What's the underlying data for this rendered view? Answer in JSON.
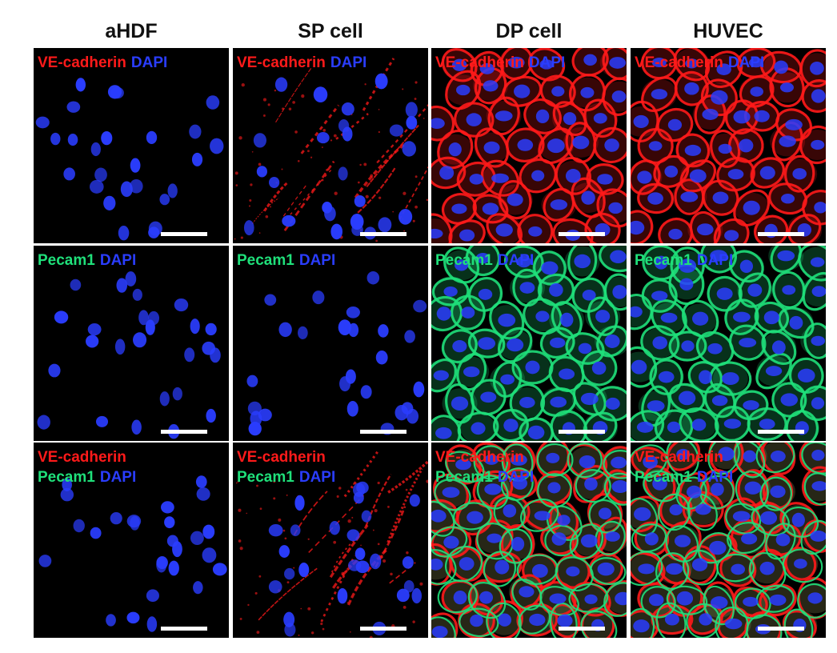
{
  "columns": [
    "aHDF",
    "SP cell",
    "DP cell",
    "HUVEC"
  ],
  "stains": {
    "ve_cadherin": {
      "label": "VE-cadherin",
      "color": "#ff1a1a"
    },
    "pecam1": {
      "label": "Pecam1",
      "color": "#1fe07a"
    },
    "dapi": {
      "label": "DAPI",
      "color": "#2a3dff"
    }
  },
  "rows": [
    {
      "lines": [
        [
          "ve_cadherin",
          "dapi"
        ]
      ]
    },
    {
      "lines": [
        [
          "pecam1",
          "dapi"
        ]
      ]
    },
    {
      "lines": [
        [
          "ve_cadherin"
        ],
        [
          "pecam1",
          "dapi"
        ]
      ]
    }
  ],
  "panels": [
    {
      "column": "aHDF",
      "row": 0,
      "membrane": [],
      "pattern": "sparse"
    },
    {
      "column": "SP cell",
      "row": 0,
      "membrane": [
        "ve_cadherin"
      ],
      "pattern": "streaks"
    },
    {
      "column": "DP cell",
      "row": 0,
      "membrane": [
        "ve_cadherin"
      ],
      "pattern": "network"
    },
    {
      "column": "HUVEC",
      "row": 0,
      "membrane": [
        "ve_cadherin"
      ],
      "pattern": "network"
    },
    {
      "column": "aHDF",
      "row": 1,
      "membrane": [],
      "pattern": "sparse"
    },
    {
      "column": "SP cell",
      "row": 1,
      "membrane": [],
      "pattern": "sparse"
    },
    {
      "column": "DP cell",
      "row": 1,
      "membrane": [
        "pecam1"
      ],
      "pattern": "network"
    },
    {
      "column": "HUVEC",
      "row": 1,
      "membrane": [
        "pecam1"
      ],
      "pattern": "network"
    },
    {
      "column": "aHDF",
      "row": 2,
      "membrane": [],
      "pattern": "sparse"
    },
    {
      "column": "SP cell",
      "row": 2,
      "membrane": [
        "ve_cadherin"
      ],
      "pattern": "streaks"
    },
    {
      "column": "DP cell",
      "row": 2,
      "membrane": [
        "ve_cadherin",
        "pecam1"
      ],
      "pattern": "network"
    },
    {
      "column": "HUVEC",
      "row": 2,
      "membrane": [
        "ve_cadherin",
        "pecam1"
      ],
      "pattern": "network"
    }
  ]
}
